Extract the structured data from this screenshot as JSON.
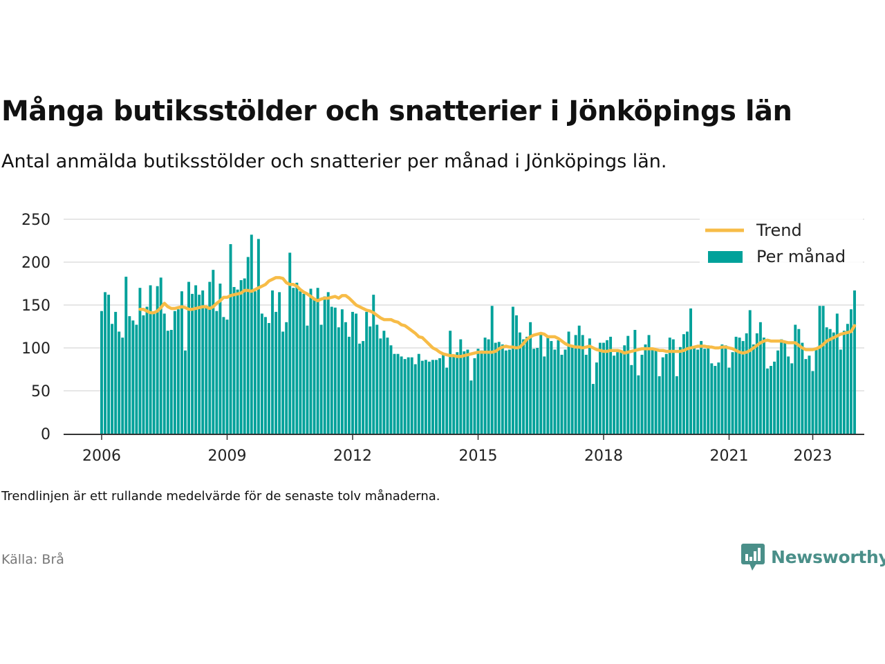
{
  "chart_data": {
    "type": "bar",
    "title": "Många butiksstölder och snatterier i Jönköpings län",
    "subtitle": "Antal anmälda butiksstölder och snatterier per månad i Jönköpings län.",
    "start": "2006-01",
    "yticks": [
      0,
      50,
      100,
      150,
      200,
      250
    ],
    "xticks": [
      "2006",
      "2009",
      "2012",
      "2015",
      "2018",
      "2021",
      "2023"
    ],
    "ylim": [
      0,
      250
    ],
    "grid": true,
    "legend_position": "top-right",
    "colors": {
      "bar": "#00a19a",
      "trend": "#f7bc47",
      "grid": "#dddddd",
      "axis": "#333333"
    },
    "series": [
      {
        "name": "Per månad",
        "kind": "bar",
        "values": [
          143,
          165,
          162,
          128,
          142,
          119,
          112,
          183,
          137,
          132,
          127,
          170,
          138,
          148,
          173,
          140,
          172,
          182,
          140,
          120,
          121,
          143,
          145,
          166,
          97,
          177,
          163,
          173,
          162,
          167,
          147,
          177,
          191,
          143,
          175,
          136,
          133,
          221,
          171,
          168,
          179,
          181,
          206,
          232,
          166,
          227,
          140,
          136,
          129,
          167,
          142,
          165,
          119,
          130,
          211,
          170,
          176,
          166,
          163,
          126,
          169,
          156,
          170,
          127,
          160,
          165,
          148,
          147,
          124,
          145,
          130,
          113,
          142,
          140,
          105,
          108,
          142,
          125,
          162,
          127,
          111,
          120,
          112,
          103,
          93,
          93,
          90,
          87,
          89,
          89,
          81,
          93,
          85,
          86,
          84,
          86,
          86,
          88,
          92,
          77,
          120,
          90,
          95,
          110,
          96,
          98,
          62,
          88,
          99,
          97,
          112,
          110,
          149,
          106,
          107,
          104,
          97,
          98,
          148,
          138,
          118,
          110,
          113,
          130,
          99,
          100,
          117,
          90,
          114,
          108,
          98,
          109,
          92,
          98,
          119,
          102,
          115,
          126,
          115,
          92,
          111,
          58,
          83,
          106,
          106,
          109,
          113,
          91,
          95,
          97,
          103,
          114,
          80,
          121,
          68,
          92,
          104,
          115,
          98,
          98,
          67,
          89,
          93,
          112,
          110,
          67,
          101,
          116,
          119,
          146,
          100,
          98,
          108,
          99,
          103,
          82,
          79,
          83,
          104,
          103,
          77,
          95,
          113,
          112,
          108,
          117,
          144,
          104,
          117,
          130,
          112,
          76,
          79,
          84,
          97,
          110,
          106,
          90,
          82,
          127,
          122,
          106,
          87,
          91,
          73,
          99,
          149,
          149,
          124,
          122,
          118,
          140,
          98,
          120,
          128,
          145,
          167
        ]
      },
      {
        "name": "Trend",
        "kind": "line",
        "start_index": 11,
        "values": [
          145,
          145,
          143,
          141,
          141,
          143,
          147,
          152,
          148,
          146,
          146,
          147,
          148,
          147,
          145,
          145,
          146,
          147,
          148,
          148,
          146,
          148,
          152,
          155,
          159,
          159,
          161,
          162,
          163,
          164,
          167,
          167,
          166,
          168,
          170,
          172,
          174,
          178,
          180,
          182,
          182,
          181,
          176,
          174,
          174,
          172,
          168,
          165,
          163,
          160,
          157,
          155,
          157,
          158,
          158,
          159,
          160,
          158,
          161,
          161,
          158,
          154,
          150,
          148,
          146,
          144,
          143,
          141,
          138,
          135,
          133,
          133,
          133,
          131,
          130,
          127,
          126,
          123,
          120,
          117,
          113,
          112,
          108,
          104,
          100,
          98,
          95,
          93,
          92,
          91,
          91,
          90,
          90,
          91,
          92,
          93,
          94,
          95,
          95,
          95,
          95,
          95,
          96,
          99,
          101,
          102,
          101,
          101,
          100,
          101,
          105,
          110,
          113,
          115,
          116,
          117,
          116,
          113,
          113,
          113,
          111,
          108,
          105,
          103,
          102,
          101,
          101,
          100,
          101,
          102,
          100,
          98,
          97,
          96,
          96,
          97,
          97,
          97,
          96,
          94,
          95,
          96,
          97,
          98,
          99,
          99,
          99,
          99,
          98,
          97,
          97,
          96,
          96,
          96,
          96,
          96,
          97,
          99,
          100,
          101,
          102,
          102,
          102,
          101,
          101,
          100,
          100,
          101,
          101,
          100,
          99,
          97,
          95,
          94,
          95,
          97,
          100,
          103,
          106,
          108,
          109,
          108,
          108,
          108,
          108,
          107,
          106,
          106,
          106,
          103,
          100,
          98,
          98,
          98,
          99,
          101,
          104,
          108,
          110,
          112,
          114,
          116,
          117,
          118,
          119,
          126
        ]
      }
    ]
  },
  "legend": {
    "trend_label": "Trend",
    "bars_label": "Per månad"
  },
  "note": "Trendlinjen är ett rullande medelvärde för de senaste tolv månaderna.",
  "source": "Källa: Brå",
  "brand": {
    "name": "Newsworthy",
    "icon": "bar-chart-speech-bubble-icon",
    "color": "#4a8f89"
  }
}
